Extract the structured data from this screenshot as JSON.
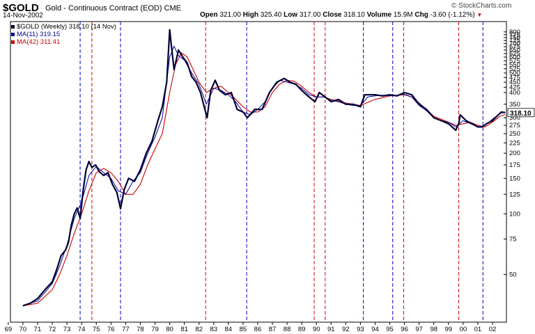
{
  "header": {
    "symbol": "$GOLD",
    "description": "Gold - Continuous Contract (EOD)",
    "exchange": "CME",
    "date": "14-Nov-2002",
    "watermark": "© StockCharts.com",
    "open_label": "Open",
    "open_value": "321.00",
    "high_label": "High",
    "high_value": "325.40",
    "low_label": "Low",
    "low_value": "317.00",
    "close_label": "Close",
    "close_value": "318.10",
    "volume_label": "Volume",
    "volume_value": "15.9M",
    "chg_label": "Chg",
    "chg_value": "-3.60 (-1.12%)"
  },
  "legend": {
    "price": "$GOLD (Weekly) 318.10 (14 Nov)",
    "ma11": "MA(11) 319.15",
    "ma42": "MA(42) 311.41"
  },
  "colors": {
    "price": "#000033",
    "ma11": "#000099",
    "ma42": "#cc0000",
    "blue_marker": "#0000cc",
    "red_marker": "#cc0000",
    "axis": "#000000"
  },
  "last_price_label": "318.10",
  "chart_data": {
    "type": "line",
    "scale": "log",
    "ylim": [
      29,
      900
    ],
    "xlim": [
      1969.0,
      2003.0
    ],
    "y_ticks": [
      50,
      75,
      100,
      125,
      150,
      175,
      200,
      225,
      250,
      275,
      300,
      350,
      400,
      425,
      450,
      475,
      500,
      525,
      550,
      575,
      600,
      625,
      650,
      675,
      700,
      725,
      750,
      775,
      800
    ],
    "x_ticks": [
      {
        "label": "69",
        "x": 1969.0
      },
      {
        "label": "70",
        "x": 1970.0
      },
      {
        "label": "71",
        "x": 1971.0
      },
      {
        "label": "72",
        "x": 1972.0
      },
      {
        "label": "73",
        "x": 1973.0
      },
      {
        "label": "74",
        "x": 1974.0
      },
      {
        "label": "75",
        "x": 1975.0
      },
      {
        "label": "76",
        "x": 1976.0
      },
      {
        "label": "77",
        "x": 1977.0
      },
      {
        "label": "78",
        "x": 1978.0
      },
      {
        "label": "79",
        "x": 1979.0
      },
      {
        "label": "80",
        "x": 1980.0
      },
      {
        "label": "81",
        "x": 1981.0
      },
      {
        "label": "82",
        "x": 1982.0
      },
      {
        "label": "83",
        "x": 1983.0
      },
      {
        "label": "84",
        "x": 1984.0
      },
      {
        "label": "85",
        "x": 1985.0
      },
      {
        "label": "86",
        "x": 1986.0
      },
      {
        "label": "87",
        "x": 1987.0
      },
      {
        "label": "88",
        "x": 1988.0
      },
      {
        "label": "89",
        "x": 1989.0
      },
      {
        "label": "90",
        "x": 1990.0
      },
      {
        "label": "91",
        "x": 1991.0
      },
      {
        "label": "92",
        "x": 1992.0
      },
      {
        "label": "93",
        "x": 1993.0
      },
      {
        "label": "94",
        "x": 1994.0
      },
      {
        "label": "95",
        "x": 1995.0
      },
      {
        "label": "96",
        "x": 1996.0
      },
      {
        "label": "97",
        "x": 1997.0
      },
      {
        "label": "98",
        "x": 1998.0
      },
      {
        "label": "99",
        "x": 1999.0
      },
      {
        "label": "00",
        "x": 2000.0
      },
      {
        "label": "01",
        "x": 2001.0
      },
      {
        "label": "02",
        "x": 2002.0
      }
    ],
    "vertical_markers": [
      {
        "x": 1973.9,
        "color": "blue"
      },
      {
        "x": 1974.7,
        "color": "red"
      },
      {
        "x": 1976.65,
        "color": "blue"
      },
      {
        "x": 1982.45,
        "color": "red"
      },
      {
        "x": 1985.25,
        "color": "blue"
      },
      {
        "x": 1989.85,
        "color": "red"
      },
      {
        "x": 1990.6,
        "color": "red"
      },
      {
        "x": 1993.2,
        "color": "blue"
      },
      {
        "x": 1995.2,
        "color": "blue"
      },
      {
        "x": 1995.95,
        "color": "red"
      },
      {
        "x": 1999.7,
        "color": "red"
      },
      {
        "x": 2001.35,
        "color": "blue"
      }
    ],
    "series": [
      {
        "key": "price",
        "x": [
          1970.0,
          1970.5,
          1971.0,
          1971.5,
          1972.0,
          1972.3,
          1972.6,
          1972.9,
          1973.1,
          1973.3,
          1973.5,
          1973.7,
          1973.9,
          1974.1,
          1974.3,
          1974.5,
          1974.7,
          1974.95,
          1975.2,
          1975.5,
          1975.8,
          1976.1,
          1976.4,
          1976.65,
          1976.9,
          1977.2,
          1977.6,
          1978.0,
          1978.4,
          1978.8,
          1979.2,
          1979.5,
          1979.8,
          1980.0,
          1980.1,
          1980.3,
          1980.6,
          1980.9,
          1981.2,
          1981.5,
          1981.8,
          1982.1,
          1982.4,
          1982.55,
          1982.8,
          1983.1,
          1983.4,
          1983.8,
          1984.2,
          1984.6,
          1985.0,
          1985.3,
          1985.8,
          1986.3,
          1986.8,
          1987.3,
          1987.8,
          1988.2,
          1988.6,
          1989.0,
          1989.5,
          1989.9,
          1990.2,
          1990.6,
          1991.0,
          1991.5,
          1992.0,
          1992.5,
          1993.0,
          1993.3,
          1993.6,
          1994.0,
          1994.5,
          1995.0,
          1995.5,
          1996.0,
          1996.5,
          1997.0,
          1997.5,
          1998.0,
          1998.5,
          1999.0,
          1999.5,
          1999.7,
          1999.8,
          2000.2,
          2000.6,
          2001.0,
          2001.3,
          2001.6,
          2002.0,
          2002.4,
          2002.6,
          2002.87
        ],
        "y": [
          35,
          36,
          38,
          42,
          46,
          53,
          62,
          66,
          72,
          88,
          100,
          107,
          95,
          130,
          165,
          182,
          170,
          175,
          162,
          155,
          160,
          140,
          128,
          106,
          132,
          150,
          145,
          165,
          200,
          230,
          290,
          340,
          450,
          820,
          700,
          520,
          650,
          600,
          560,
          480,
          450,
          400,
          330,
          300,
          410,
          460,
          410,
          390,
          400,
          330,
          320,
          300,
          330,
          330,
          400,
          450,
          470,
          450,
          440,
          410,
          380,
          360,
          400,
          380,
          360,
          370,
          350,
          350,
          340,
          390,
          390,
          390,
          385,
          390,
          385,
          400,
          390,
          350,
          330,
          300,
          290,
          280,
          260,
          280,
          310,
          290,
          280,
          270,
          270,
          280,
          290,
          310,
          320,
          318.1
        ]
      },
      {
        "key": "ma11",
        "x": [
          1970.0,
          1971.0,
          1972.0,
          1972.5,
          1973.0,
          1973.5,
          1974.0,
          1974.5,
          1975.0,
          1975.5,
          1976.0,
          1976.5,
          1977.0,
          1977.5,
          1978.0,
          1978.5,
          1979.0,
          1979.5,
          1980.0,
          1980.3,
          1980.6,
          1981.0,
          1981.5,
          1982.0,
          1982.5,
          1983.0,
          1983.5,
          1984.0,
          1984.5,
          1985.0,
          1985.5,
          1986.0,
          1986.5,
          1987.0,
          1987.5,
          1988.0,
          1988.5,
          1989.0,
          1989.5,
          1990.0,
          1990.5,
          1991.0,
          1991.5,
          1992.0,
          1992.5,
          1993.0,
          1993.5,
          1994.0,
          1994.5,
          1995.0,
          1995.5,
          1996.0,
          1996.5,
          1997.0,
          1997.5,
          1998.0,
          1998.5,
          1999.0,
          1999.5,
          2000.0,
          2000.5,
          2001.0,
          2001.5,
          2002.0,
          2002.5,
          2002.87
        ],
        "y": [
          35,
          37,
          45,
          55,
          70,
          95,
          115,
          155,
          172,
          160,
          150,
          130,
          125,
          145,
          160,
          200,
          240,
          300,
          600,
          680,
          610,
          580,
          500,
          440,
          350,
          420,
          410,
          390,
          360,
          320,
          310,
          330,
          360,
          420,
          460,
          450,
          440,
          420,
          390,
          380,
          380,
          365,
          360,
          350,
          345,
          345,
          380,
          385,
          388,
          385,
          388,
          392,
          380,
          345,
          325,
          300,
          290,
          285,
          270,
          290,
          280,
          270,
          275,
          295,
          315,
          319.15
        ]
      },
      {
        "key": "ma42",
        "x": [
          1970.0,
          1971.0,
          1972.0,
          1972.5,
          1973.0,
          1973.5,
          1974.0,
          1974.5,
          1975.0,
          1975.5,
          1976.0,
          1976.5,
          1977.0,
          1977.5,
          1978.0,
          1978.5,
          1979.0,
          1979.5,
          1980.0,
          1980.4,
          1980.8,
          1981.2,
          1981.6,
          1982.0,
          1982.5,
          1983.0,
          1983.5,
          1984.0,
          1984.5,
          1985.0,
          1985.5,
          1986.0,
          1986.5,
          1987.0,
          1987.5,
          1988.0,
          1988.5,
          1989.0,
          1989.5,
          1990.0,
          1990.5,
          1991.0,
          1992.0,
          1993.0,
          1994.0,
          1995.0,
          1996.0,
          1996.5,
          1997.0,
          1997.5,
          1998.0,
          1998.5,
          1999.0,
          1999.5,
          2000.0,
          2000.5,
          2001.0,
          2001.5,
          2002.0,
          2002.5,
          2002.87
        ],
        "y": [
          35,
          36,
          42,
          50,
          62,
          80,
          100,
          130,
          160,
          168,
          160,
          145,
          125,
          125,
          140,
          175,
          210,
          250,
          400,
          550,
          630,
          600,
          520,
          450,
          400,
          420,
          430,
          400,
          370,
          340,
          320,
          320,
          340,
          400,
          440,
          460,
          455,
          430,
          400,
          380,
          380,
          370,
          355,
          345,
          370,
          385,
          390,
          380,
          355,
          330,
          305,
          295,
          285,
          275,
          280,
          285,
          275,
          270,
          285,
          305,
          311.41
        ]
      }
    ]
  }
}
